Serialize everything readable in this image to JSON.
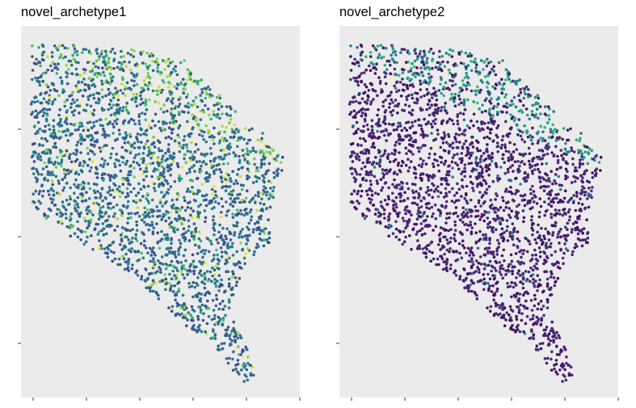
{
  "chart_data": [
    {
      "type": "scatter",
      "title": "novel_archetype1",
      "xlabel": "",
      "ylabel": "",
      "grid": false,
      "legend": "none",
      "colormap": "viridis",
      "color_value_range": [
        0,
        1
      ],
      "point_color": "continuous archetype score (viridis); mostly low-mid values (blue/teal) with scattered high values (green/yellow)",
      "background_color": "#ebebeb",
      "x_tick_count": 6,
      "y_tick_count": 3,
      "x_tick_labels_visible": false,
      "y_tick_labels_visible": false,
      "score_distribution": {
        "mean_low": 0.3,
        "high_fraction": 0.18
      }
    },
    {
      "type": "scatter",
      "title": "novel_archetype2",
      "xlabel": "",
      "ylabel": "",
      "grid": false,
      "legend": "none",
      "colormap": "viridis",
      "color_value_range": [
        0,
        1
      ],
      "point_color": "continuous archetype score (viridis); mostly low values (dark purple) with higher values (teal/green) along the upper-right edge",
      "background_color": "#ebebeb",
      "x_tick_count": 6,
      "y_tick_count": 3,
      "x_tick_labels_visible": false,
      "y_tick_labels_visible": false,
      "score_distribution": {
        "mean_low": 0.1,
        "high_fraction": 0.06
      }
    }
  ]
}
